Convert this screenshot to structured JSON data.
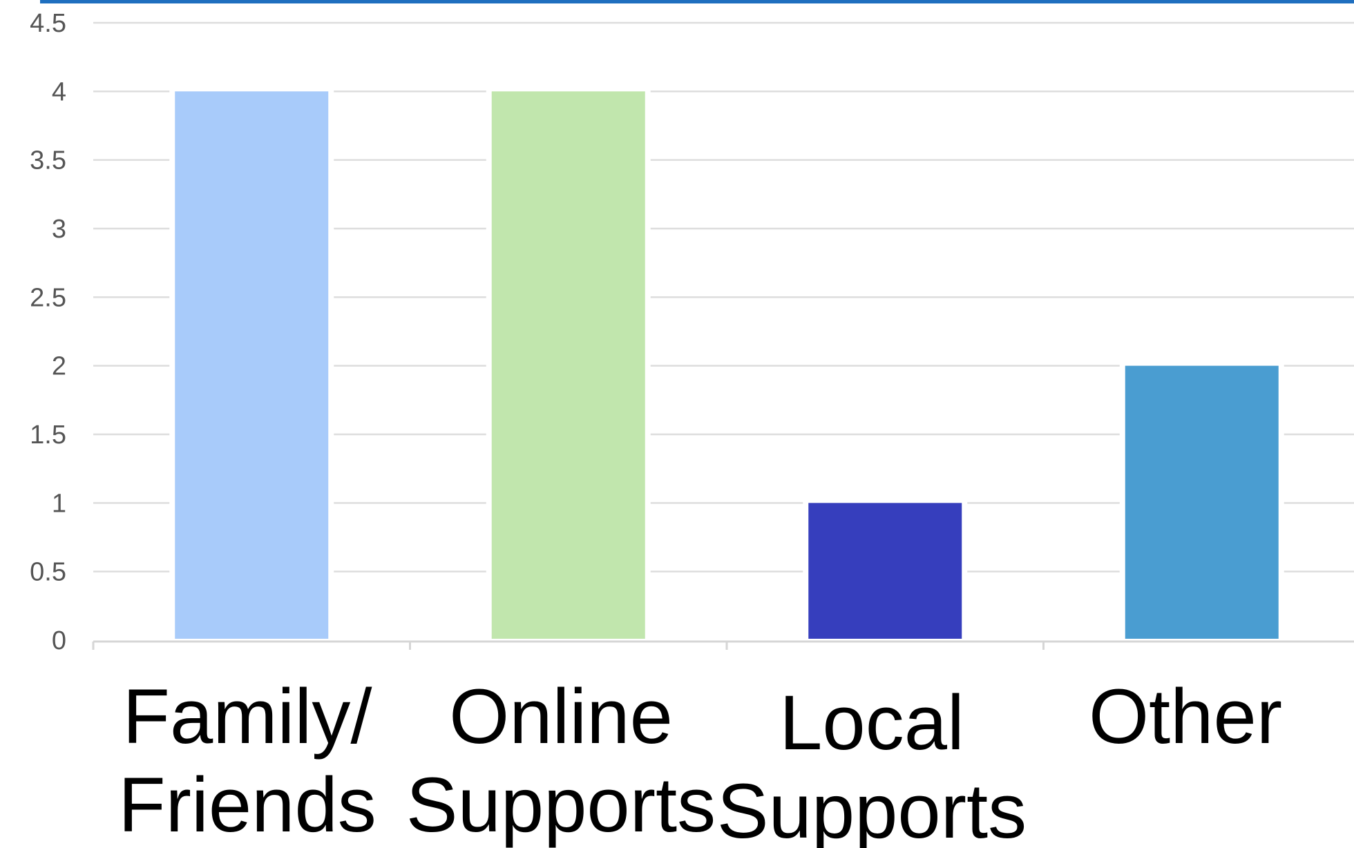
{
  "chart_data": {
    "type": "bar",
    "categories": [
      [
        "Family/",
        "Friends"
      ],
      [
        "Online",
        "Supports"
      ],
      [
        "Local",
        "Supports"
      ],
      [
        "Other"
      ]
    ],
    "values": [
      4,
      4,
      1,
      2
    ],
    "bar_colors": [
      "#a8cbfa",
      "#c1e6ad",
      "#363ebd",
      "#4a9dd1"
    ],
    "accent_color": "#1f6fbf",
    "grid_color": "#dddddd",
    "yticks": [
      "0",
      "0.5",
      "1",
      "1.5",
      "2",
      "2.5",
      "3",
      "3.5",
      "4",
      "4.5"
    ],
    "ylim": [
      0,
      4.5
    ],
    "grid": true,
    "title": "",
    "xlabel": "",
    "ylabel": ""
  }
}
